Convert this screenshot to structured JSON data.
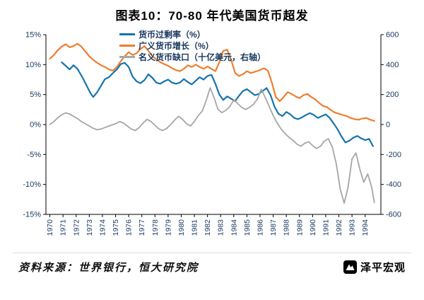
{
  "title": "图表10：70-80 年代美国货币超发",
  "legend": [
    {
      "label": "货币过剩率（%）",
      "color": "#1574ad"
    },
    {
      "label": "广义货币增长（%）",
      "color": "#ed7d31"
    },
    {
      "label": "名义货币缺口（十亿美元，右轴）",
      "color": "#a6a6a6"
    }
  ],
  "footer": {
    "source": "资料来源：世界银行，恒大研究院",
    "logo_text": "泽平宏观"
  },
  "chart_data": {
    "type": "line",
    "title": "图表10：70-80 年代美国货币超发",
    "x_ticks": [
      1970,
      1971,
      1972,
      1973,
      1974,
      1975,
      1976,
      1977,
      1978,
      1979,
      1980,
      1981,
      1982,
      1983,
      1984,
      1985,
      1986,
      1987,
      1988,
      1989,
      1990,
      1991,
      1992,
      1993,
      1994
    ],
    "left_axis": {
      "tick_labels": [
        "15%",
        "10%",
        "5%",
        "0%",
        "-5%",
        "-10%",
        "-15%"
      ],
      "tick_values": [
        15,
        10,
        5,
        0,
        -5,
        -10,
        -15
      ],
      "min": -15,
      "max": 15
    },
    "right_axis": {
      "tick_labels": [
        "600",
        "400",
        "200",
        "0",
        "-200",
        "-400",
        "-600"
      ],
      "tick_values": [
        600,
        400,
        200,
        0,
        -200,
        -400,
        -600
      ],
      "min": -600,
      "max": 600
    },
    "grid": false,
    "legend_position": "top-inside",
    "series": [
      {
        "name": "货币过剩率（%）",
        "axis": "left",
        "color": "#1574ad",
        "width": 2.2,
        "points": [
          [
            1970.9,
            10.4
          ],
          [
            1971.2,
            9.8
          ],
          [
            1971.5,
            9.2
          ],
          [
            1971.8,
            9.9
          ],
          [
            1972.1,
            9.3
          ],
          [
            1972.5,
            7.8
          ],
          [
            1972.8,
            6.5
          ],
          [
            1973.1,
            5.2
          ],
          [
            1973.3,
            4.6
          ],
          [
            1973.6,
            5.4
          ],
          [
            1973.9,
            6.5
          ],
          [
            1974.2,
            7.6
          ],
          [
            1974.5,
            7.9
          ],
          [
            1974.8,
            8.6
          ],
          [
            1975.1,
            9.2
          ],
          [
            1975.4,
            10.1
          ],
          [
            1975.7,
            10.3
          ],
          [
            1976.0,
            9.6
          ],
          [
            1976.3,
            8.0
          ],
          [
            1976.6,
            7.2
          ],
          [
            1976.9,
            6.9
          ],
          [
            1977.2,
            7.4
          ],
          [
            1977.5,
            8.4
          ],
          [
            1977.8,
            7.8
          ],
          [
            1978.1,
            7.0
          ],
          [
            1978.4,
            6.8
          ],
          [
            1978.7,
            7.2
          ],
          [
            1979.0,
            7.5
          ],
          [
            1979.3,
            7.0
          ],
          [
            1979.6,
            6.8
          ],
          [
            1979.9,
            7.0
          ],
          [
            1980.2,
            7.6
          ],
          [
            1980.5,
            7.1
          ],
          [
            1980.8,
            6.7
          ],
          [
            1981.1,
            7.3
          ],
          [
            1981.4,
            7.9
          ],
          [
            1981.7,
            7.5
          ],
          [
            1982.0,
            8.1
          ],
          [
            1982.3,
            8.3
          ],
          [
            1982.6,
            6.8
          ],
          [
            1982.9,
            5.0
          ],
          [
            1983.2,
            4.1
          ],
          [
            1983.5,
            4.7
          ],
          [
            1983.8,
            4.3
          ],
          [
            1984.1,
            3.9
          ],
          [
            1984.4,
            4.8
          ],
          [
            1984.7,
            5.6
          ],
          [
            1985.0,
            5.9
          ],
          [
            1985.3,
            5.4
          ],
          [
            1985.6,
            4.9
          ],
          [
            1985.9,
            5.1
          ],
          [
            1986.2,
            5.6
          ],
          [
            1986.5,
            6.1
          ],
          [
            1986.8,
            4.9
          ],
          [
            1987.1,
            3.0
          ],
          [
            1987.4,
            1.8
          ],
          [
            1987.7,
            1.4
          ],
          [
            1988.0,
            2.1
          ],
          [
            1988.3,
            1.7
          ],
          [
            1988.6,
            1.1
          ],
          [
            1988.9,
            0.9
          ],
          [
            1989.2,
            1.2
          ],
          [
            1989.5,
            1.6
          ],
          [
            1989.8,
            1.9
          ],
          [
            1990.1,
            1.6
          ],
          [
            1990.4,
            1.1
          ],
          [
            1990.7,
            1.4
          ],
          [
            1991.0,
            1.7
          ],
          [
            1991.3,
            1.1
          ],
          [
            1991.6,
            0.2
          ],
          [
            1991.9,
            -0.8
          ],
          [
            1992.2,
            -2.0
          ],
          [
            1992.5,
            -3.0
          ],
          [
            1992.8,
            -2.7
          ],
          [
            1993.1,
            -2.2
          ],
          [
            1993.4,
            -1.9
          ],
          [
            1993.7,
            -2.3
          ],
          [
            1994.0,
            -2.6
          ],
          [
            1994.3,
            -2.4
          ],
          [
            1994.6,
            -3.6
          ]
        ]
      },
      {
        "name": "广义货币增长（%）",
        "axis": "left",
        "color": "#ed7d31",
        "width": 2.2,
        "points": [
          [
            1970.0,
            11.0
          ],
          [
            1970.3,
            11.6
          ],
          [
            1970.6,
            12.4
          ],
          [
            1970.9,
            13.0
          ],
          [
            1971.2,
            13.4
          ],
          [
            1971.5,
            12.9
          ],
          [
            1971.8,
            13.1
          ],
          [
            1972.1,
            13.5
          ],
          [
            1972.4,
            13.0
          ],
          [
            1972.7,
            12.2
          ],
          [
            1973.0,
            11.4
          ],
          [
            1973.3,
            10.8
          ],
          [
            1973.6,
            10.3
          ],
          [
            1973.9,
            9.9
          ],
          [
            1974.2,
            9.6
          ],
          [
            1974.5,
            9.2
          ],
          [
            1974.8,
            9.0
          ],
          [
            1975.1,
            9.6
          ],
          [
            1975.4,
            10.6
          ],
          [
            1975.7,
            11.4
          ],
          [
            1976.0,
            12.1
          ],
          [
            1976.3,
            11.6
          ],
          [
            1976.6,
            11.9
          ],
          [
            1976.9,
            12.6
          ],
          [
            1977.2,
            13.1
          ],
          [
            1977.5,
            12.3
          ],
          [
            1977.8,
            11.4
          ],
          [
            1978.1,
            10.9
          ],
          [
            1978.4,
            10.4
          ],
          [
            1978.7,
            10.1
          ],
          [
            1979.0,
            9.8
          ],
          [
            1979.3,
            9.4
          ],
          [
            1979.6,
            9.1
          ],
          [
            1979.9,
            8.9
          ],
          [
            1980.2,
            9.3
          ],
          [
            1980.5,
            9.9
          ],
          [
            1980.8,
            9.6
          ],
          [
            1981.1,
            10.0
          ],
          [
            1981.4,
            9.6
          ],
          [
            1981.7,
            9.3
          ],
          [
            1982.0,
            9.7
          ],
          [
            1982.3,
            9.3
          ],
          [
            1982.6,
            8.9
          ],
          [
            1982.9,
            10.4
          ],
          [
            1983.2,
            12.3
          ],
          [
            1983.5,
            12.5
          ],
          [
            1983.8,
            10.8
          ],
          [
            1984.1,
            8.6
          ],
          [
            1984.4,
            8.1
          ],
          [
            1984.7,
            8.4
          ],
          [
            1985.0,
            8.9
          ],
          [
            1985.3,
            8.6
          ],
          [
            1985.6,
            8.8
          ],
          [
            1986.0,
            9.1
          ],
          [
            1986.3,
            9.4
          ],
          [
            1986.6,
            9.0
          ],
          [
            1986.9,
            7.0
          ],
          [
            1987.2,
            4.6
          ],
          [
            1987.5,
            3.9
          ],
          [
            1987.8,
            4.6
          ],
          [
            1988.1,
            5.4
          ],
          [
            1988.4,
            5.1
          ],
          [
            1988.7,
            4.7
          ],
          [
            1989.0,
            4.4
          ],
          [
            1989.3,
            4.9
          ],
          [
            1989.6,
            5.1
          ],
          [
            1989.9,
            4.6
          ],
          [
            1990.2,
            4.2
          ],
          [
            1990.5,
            3.6
          ],
          [
            1990.8,
            3.1
          ],
          [
            1991.1,
            2.9
          ],
          [
            1991.4,
            2.4
          ],
          [
            1991.7,
            2.0
          ],
          [
            1992.0,
            1.8
          ],
          [
            1992.3,
            1.6
          ],
          [
            1992.6,
            1.4
          ],
          [
            1992.9,
            1.1
          ],
          [
            1993.2,
            0.9
          ],
          [
            1993.5,
            0.8
          ],
          [
            1993.8,
            1.0
          ],
          [
            1994.1,
            1.1
          ],
          [
            1994.4,
            0.8
          ],
          [
            1994.7,
            0.6
          ]
        ]
      },
      {
        "name": "名义货币缺口（十亿美元，右轴）",
        "axis": "right",
        "color": "#a6a6a6",
        "width": 1.8,
        "points": [
          [
            1970.0,
            0
          ],
          [
            1970.3,
            20
          ],
          [
            1970.6,
            45
          ],
          [
            1970.9,
            65
          ],
          [
            1971.2,
            78
          ],
          [
            1971.5,
            70
          ],
          [
            1971.8,
            55
          ],
          [
            1972.1,
            40
          ],
          [
            1972.4,
            20
          ],
          [
            1972.7,
            5
          ],
          [
            1973.0,
            -10
          ],
          [
            1973.3,
            -25
          ],
          [
            1973.6,
            -35
          ],
          [
            1973.9,
            -30
          ],
          [
            1974.2,
            -20
          ],
          [
            1974.5,
            -10
          ],
          [
            1975.0,
            5
          ],
          [
            1975.3,
            20
          ],
          [
            1975.6,
            10
          ],
          [
            1975.9,
            -10
          ],
          [
            1976.2,
            -30
          ],
          [
            1976.5,
            -40
          ],
          [
            1976.8,
            -20
          ],
          [
            1977.1,
            10
          ],
          [
            1977.4,
            35
          ],
          [
            1977.7,
            20
          ],
          [
            1978.0,
            -5
          ],
          [
            1978.3,
            -30
          ],
          [
            1978.6,
            -40
          ],
          [
            1978.9,
            -25
          ],
          [
            1979.2,
            0
          ],
          [
            1979.5,
            30
          ],
          [
            1979.8,
            55
          ],
          [
            1980.1,
            35
          ],
          [
            1980.4,
            5
          ],
          [
            1980.7,
            -10
          ],
          [
            1981.0,
            20
          ],
          [
            1981.3,
            60
          ],
          [
            1981.6,
            90
          ],
          [
            1981.9,
            160
          ],
          [
            1982.2,
            245
          ],
          [
            1982.5,
            180
          ],
          [
            1982.8,
            100
          ],
          [
            1983.1,
            80
          ],
          [
            1983.4,
            95
          ],
          [
            1983.7,
            120
          ],
          [
            1984.0,
            165
          ],
          [
            1984.3,
            140
          ],
          [
            1984.6,
            115
          ],
          [
            1984.9,
            100
          ],
          [
            1985.2,
            115
          ],
          [
            1985.5,
            135
          ],
          [
            1985.8,
            170
          ],
          [
            1986.1,
            235
          ],
          [
            1986.4,
            180
          ],
          [
            1986.7,
            120
          ],
          [
            1987.0,
            60
          ],
          [
            1987.3,
            10
          ],
          [
            1987.6,
            -30
          ],
          [
            1987.9,
            -60
          ],
          [
            1988.2,
            -85
          ],
          [
            1988.5,
            -105
          ],
          [
            1988.8,
            -130
          ],
          [
            1989.1,
            -145
          ],
          [
            1989.4,
            -125
          ],
          [
            1989.7,
            -115
          ],
          [
            1990.0,
            -140
          ],
          [
            1990.3,
            -160
          ],
          [
            1990.6,
            -145
          ],
          [
            1990.9,
            -110
          ],
          [
            1991.2,
            -95
          ],
          [
            1991.5,
            -150
          ],
          [
            1991.8,
            -260
          ],
          [
            1992.1,
            -430
          ],
          [
            1992.4,
            -525
          ],
          [
            1992.7,
            -420
          ],
          [
            1993.0,
            -230
          ],
          [
            1993.3,
            -190
          ],
          [
            1993.6,
            -300
          ],
          [
            1993.9,
            -385
          ],
          [
            1994.2,
            -330
          ],
          [
            1994.5,
            -420
          ],
          [
            1994.7,
            -520
          ]
        ]
      }
    ]
  }
}
